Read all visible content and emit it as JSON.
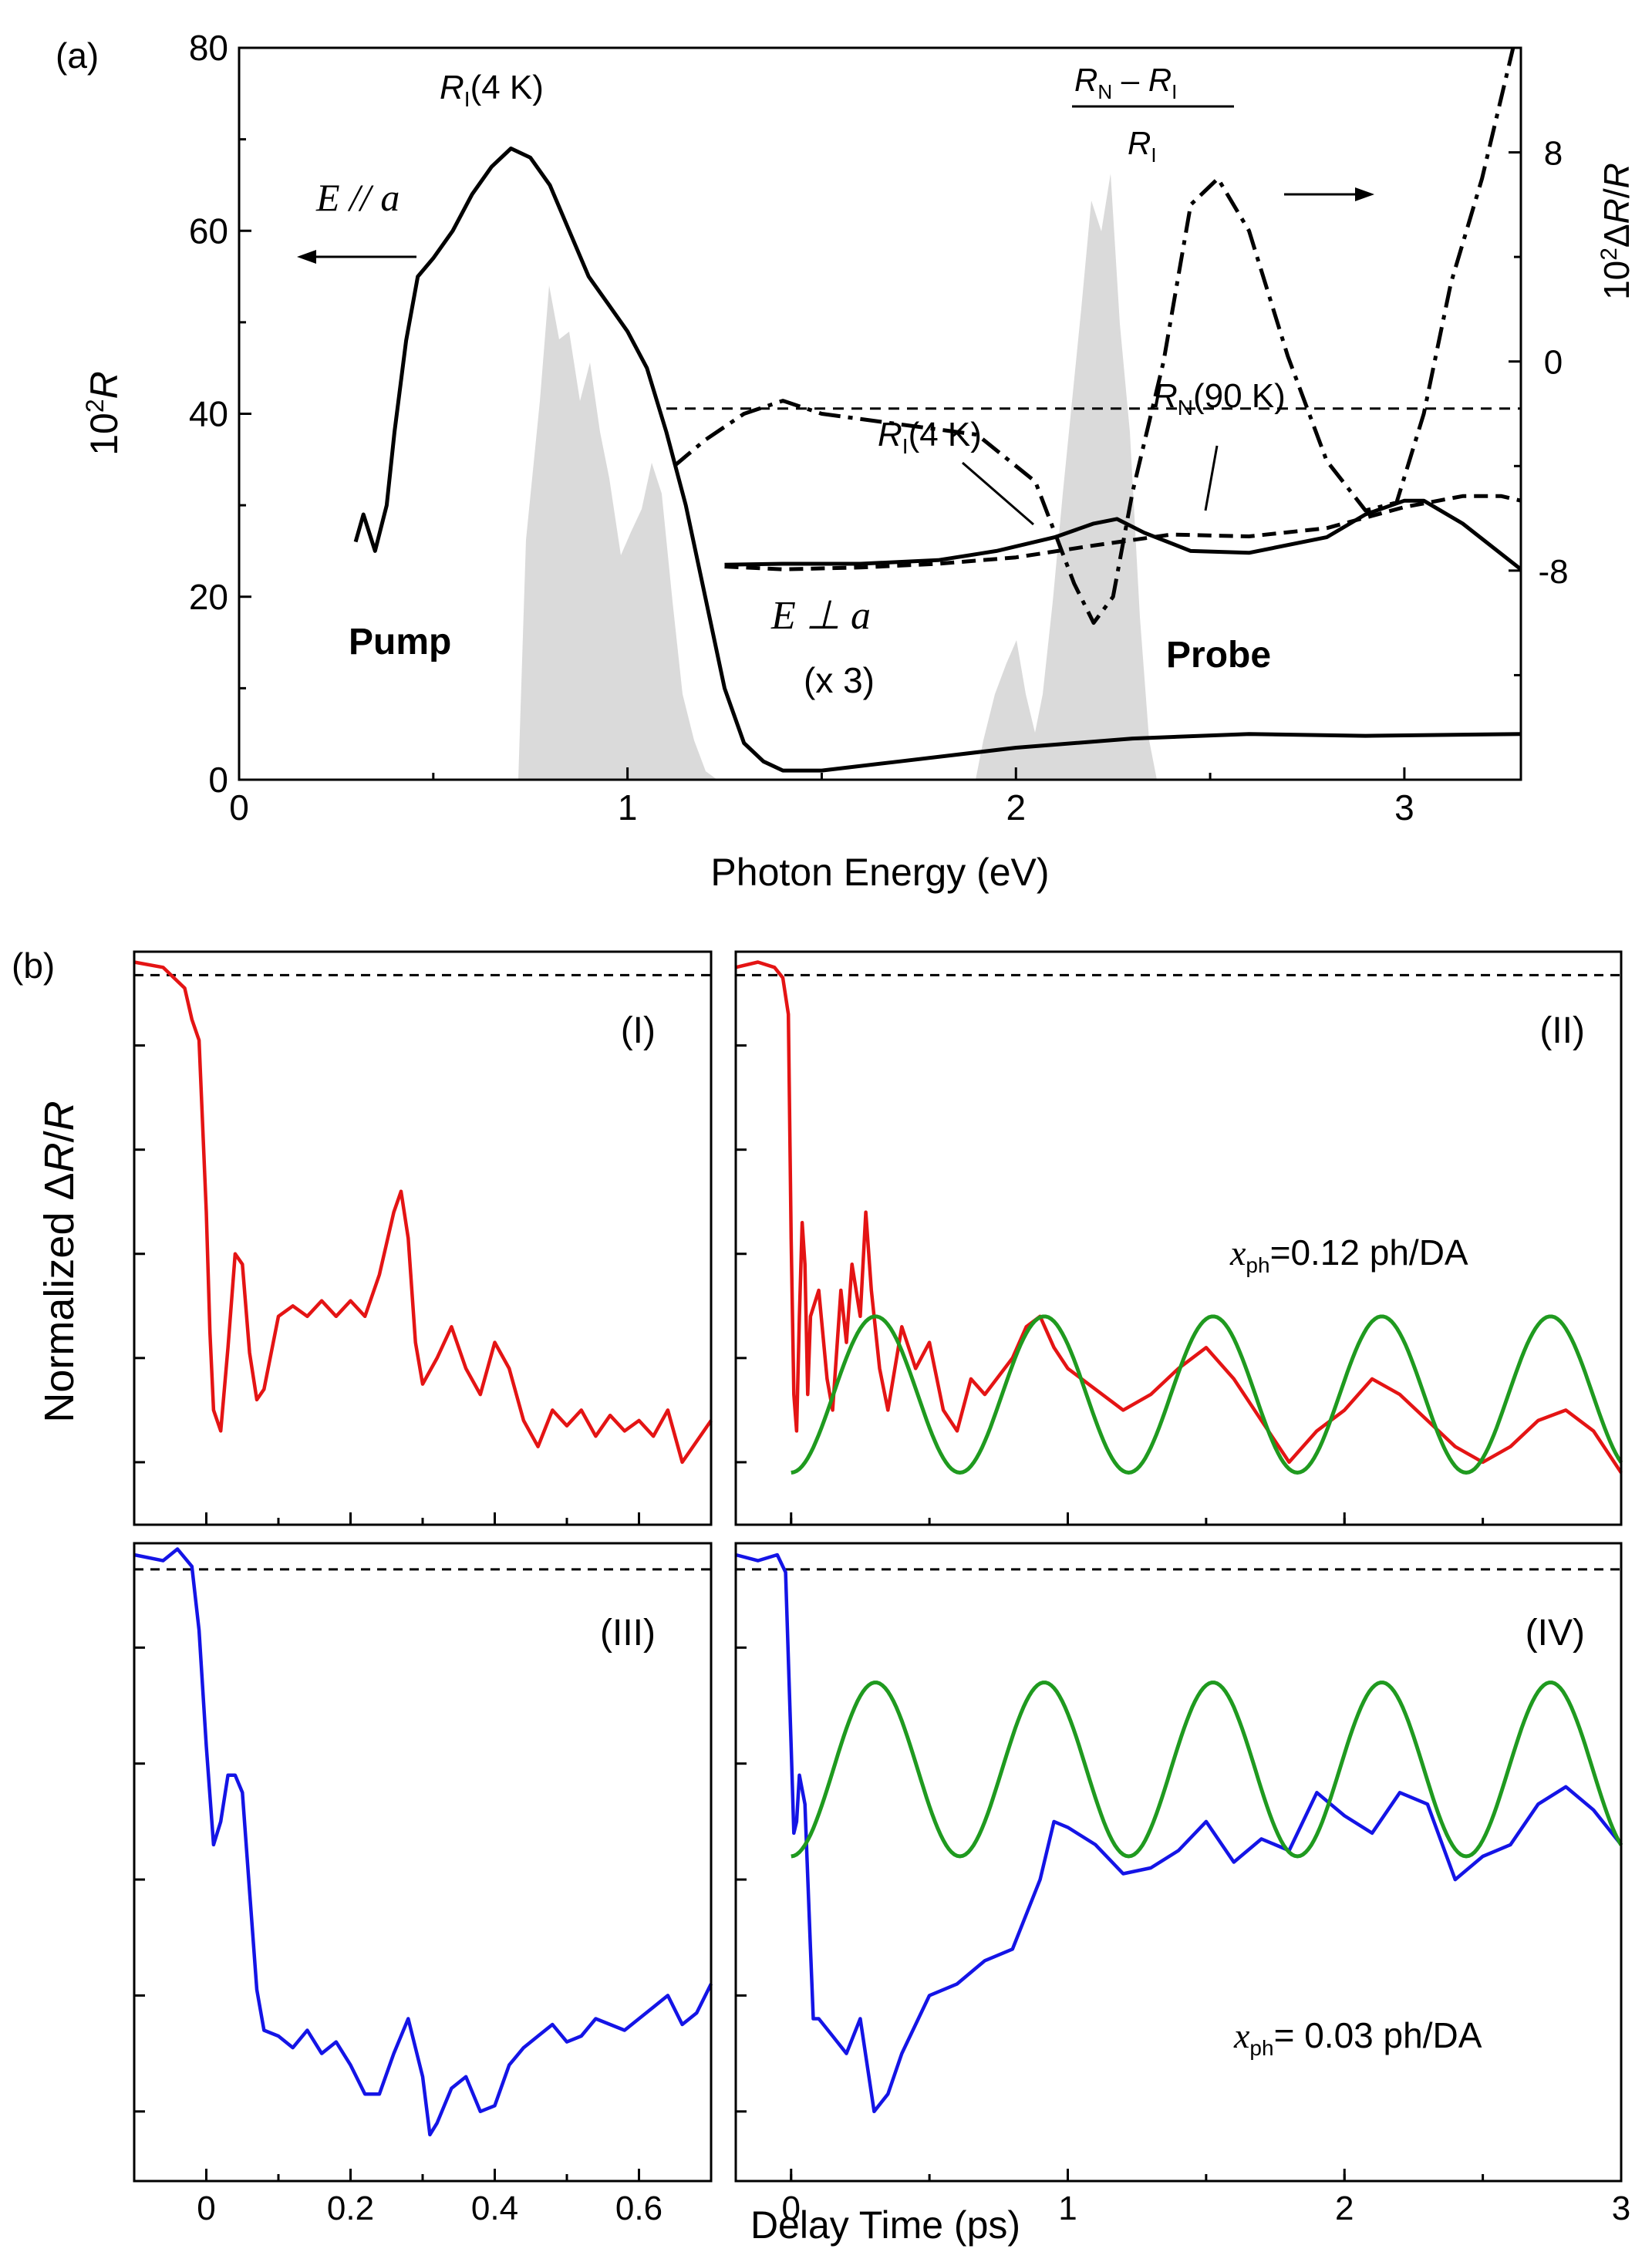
{
  "chart_data": [
    {
      "panel_label": "(a)",
      "type": "line",
      "xlabel": "Photon Energy (eV)",
      "ylabel_left": "10²R",
      "ylabel_right": "10²ΔR/R",
      "xlim": [
        0,
        3.3
      ],
      "ylim_left": [
        0,
        80
      ],
      "ylim_right": [
        -16,
        12
      ],
      "x_ticks": [
        "0",
        "1",
        "2",
        "3"
      ],
      "y_ticks_left": [
        "0",
        "20",
        "40",
        "60",
        "80"
      ],
      "y_ticks_right": [
        "-8",
        "0",
        "8"
      ],
      "annotations": {
        "e_par_a": "E // a",
        "e_perp_a": "E ⊥ a",
        "times3": "(x 3)",
        "pump": "Pump",
        "probe": "Probe",
        "ri4k_top": "RI(4 K)",
        "ri4k_mid": "RI(4 K)",
        "rn90k": "RN(90 K)",
        "ratio_num": "RN – RI",
        "ratio_den": "RI"
      },
      "series": [
        {
          "name": "RI(4 K) E // a",
          "axis": "left",
          "style": "solid",
          "x": [
            0.3,
            0.32,
            0.35,
            0.38,
            0.4,
            0.43,
            0.46,
            0.5,
            0.55,
            0.6,
            0.65,
            0.7,
            0.75,
            0.8,
            0.85,
            0.9,
            0.95,
            1.0,
            1.05,
            1.1,
            1.15,
            1.2,
            1.25,
            1.3,
            1.35,
            1.4,
            1.5,
            1.7,
            2.0,
            2.3,
            2.6,
            2.9,
            3.3
          ],
          "y": [
            26,
            29,
            25,
            30,
            38,
            48,
            55,
            57,
            60,
            64,
            67,
            69,
            68,
            65,
            60,
            55,
            52,
            49,
            45,
            38,
            30,
            20,
            10,
            4,
            2,
            1,
            1,
            2,
            3.5,
            4.5,
            5,
            4.8,
            5
          ]
        },
        {
          "name": "RI(4 K) E ⊥ a (x 3)",
          "axis": "left",
          "style": "solid",
          "x": [
            1.25,
            1.4,
            1.6,
            1.8,
            1.95,
            2.1,
            2.2,
            2.26,
            2.33,
            2.45,
            2.6,
            2.8,
            2.9,
            3.0,
            3.05,
            3.15,
            3.3
          ],
          "y": [
            23.5,
            23.6,
            23.6,
            24,
            25,
            26.5,
            28,
            28.5,
            27,
            25,
            24.8,
            26.5,
            29,
            30.5,
            30.5,
            28,
            23
          ]
        },
        {
          "name": "RN(90 K) E ⊥ a (x 3)",
          "axis": "left",
          "style": "dashed",
          "x": [
            1.25,
            1.4,
            1.6,
            1.8,
            2.0,
            2.2,
            2.4,
            2.6,
            2.8,
            3.0,
            3.15,
            3.25,
            3.3
          ],
          "y": [
            23.3,
            23,
            23.2,
            23.6,
            24.3,
            25.6,
            26.8,
            26.6,
            27.5,
            29.8,
            31,
            31,
            30.5
          ]
        },
        {
          "name": "(RN – RI)/RI",
          "axis": "right",
          "style": "dashdot",
          "x": [
            1.12,
            1.2,
            1.3,
            1.4,
            1.5,
            1.7,
            1.9,
            2.05,
            2.15,
            2.2,
            2.25,
            2.3,
            2.38,
            2.45,
            2.52,
            2.6,
            2.7,
            2.8,
            2.9,
            2.98,
            3.05,
            3.12,
            3.2,
            3.28
          ],
          "y": [
            -4,
            -3,
            -2,
            -1.5,
            -2,
            -2.4,
            -2.8,
            -4.6,
            -8.5,
            -10,
            -9,
            -5,
            0,
            6,
            7,
            5,
            0.2,
            -3.8,
            -5.7,
            -5.4,
            -2,
            3,
            7,
            12
          ]
        }
      ],
      "reference_line": {
        "axis": "right",
        "y": -1.8,
        "x_start": 1.1
      }
    },
    {
      "panel_label": "(b)",
      "type": "line",
      "ylabel": "Normalized ΔR/R",
      "xlabel": "Delay Time (ps)",
      "panels": [
        {
          "id": "I",
          "label": "(I)",
          "color": "#e41414",
          "xlim": [
            -0.1,
            0.7
          ],
          "ylim": [
            -1,
            0.1
          ],
          "x_ticks": [
            "0",
            "0.2",
            "0.4",
            "0.6"
          ],
          "x": [
            -0.1,
            -0.06,
            -0.03,
            -0.02,
            -0.01,
            0,
            0.005,
            0.01,
            0.02,
            0.03,
            0.04,
            0.05,
            0.06,
            0.07,
            0.08,
            0.1,
            0.12,
            0.14,
            0.16,
            0.18,
            0.2,
            0.22,
            0.24,
            0.26,
            0.27,
            0.28,
            0.29,
            0.3,
            0.32,
            0.34,
            0.36,
            0.38,
            0.4,
            0.42,
            0.44,
            0.46,
            0.48,
            0.5,
            0.52,
            0.54,
            0.56,
            0.58,
            0.6,
            0.62,
            0.64,
            0.66,
            0.68,
            0.7
          ],
          "y": [
            0.08,
            0.07,
            0.03,
            -0.03,
            -0.07,
            -0.4,
            -0.63,
            -0.78,
            -0.82,
            -0.66,
            -0.48,
            -0.5,
            -0.67,
            -0.76,
            -0.74,
            -0.6,
            -0.58,
            -0.6,
            -0.57,
            -0.6,
            -0.57,
            -0.6,
            -0.52,
            -0.4,
            -0.36,
            -0.45,
            -0.65,
            -0.73,
            -0.68,
            -0.62,
            -0.7,
            -0.75,
            -0.65,
            -0.7,
            -0.8,
            -0.85,
            -0.78,
            -0.81,
            -0.78,
            -0.83,
            -0.79,
            -0.82,
            -0.8,
            -0.83,
            -0.78,
            -0.88,
            -0.84,
            -0.8
          ]
        },
        {
          "id": "II",
          "label": "(II)",
          "color": "#e41414",
          "xlim": [
            -0.2,
            3.0
          ],
          "ylim": [
            -1,
            0.1
          ],
          "x_ticks": [
            "0",
            "1",
            "2",
            "3"
          ],
          "annotation_name": "x",
          "annotation_sub": "ph",
          "annotation_value": "=0.12 ph/DA",
          "x": [
            -0.2,
            -0.12,
            -0.06,
            -0.03,
            -0.01,
            0,
            0.01,
            0.02,
            0.03,
            0.04,
            0.05,
            0.06,
            0.07,
            0.1,
            0.13,
            0.15,
            0.18,
            0.2,
            0.22,
            0.25,
            0.27,
            0.29,
            0.32,
            0.35,
            0.4,
            0.45,
            0.5,
            0.55,
            0.6,
            0.65,
            0.7,
            0.8,
            0.85,
            0.9,
            0.95,
            1.0,
            1.1,
            1.2,
            1.3,
            1.4,
            1.5,
            1.6,
            1.7,
            1.8,
            1.9,
            2.0,
            2.1,
            2.2,
            2.3,
            2.4,
            2.5,
            2.6,
            2.7,
            2.8,
            2.9,
            3.0
          ],
          "y": [
            0.07,
            0.08,
            0.07,
            0.05,
            -0.02,
            -0.45,
            -0.75,
            -0.82,
            -0.6,
            -0.42,
            -0.5,
            -0.75,
            -0.6,
            -0.55,
            -0.72,
            -0.78,
            -0.55,
            -0.65,
            -0.5,
            -0.6,
            -0.4,
            -0.55,
            -0.7,
            -0.78,
            -0.62,
            -0.7,
            -0.65,
            -0.78,
            -0.82,
            -0.72,
            -0.75,
            -0.68,
            -0.62,
            -0.6,
            -0.66,
            -0.7,
            -0.74,
            -0.78,
            -0.75,
            -0.7,
            -0.66,
            -0.72,
            -0.8,
            -0.88,
            -0.82,
            -0.78,
            -0.72,
            -0.75,
            -0.8,
            -0.85,
            -0.88,
            -0.85,
            -0.8,
            -0.78,
            -0.82,
            -0.9
          ]
        },
        {
          "id": "III",
          "label": "(III)",
          "color": "#1414e6",
          "xlim": [
            -0.1,
            0.7
          ],
          "ylim": [
            -1,
            0.1
          ],
          "x_ticks": [
            "0",
            "0.2",
            "0.4",
            "0.6"
          ],
          "x": [
            -0.1,
            -0.06,
            -0.04,
            -0.02,
            -0.01,
            0,
            0.01,
            0.02,
            0.03,
            0.04,
            0.05,
            0.06,
            0.07,
            0.08,
            0.1,
            0.12,
            0.14,
            0.16,
            0.18,
            0.2,
            0.22,
            0.24,
            0.26,
            0.28,
            0.3,
            0.31,
            0.32,
            0.34,
            0.36,
            0.38,
            0.4,
            0.42,
            0.44,
            0.46,
            0.48,
            0.5,
            0.52,
            0.54,
            0.56,
            0.58,
            0.6,
            0.62,
            0.64,
            0.66,
            0.68,
            0.7
          ],
          "y": [
            0.08,
            0.07,
            0.09,
            0.06,
            -0.05,
            -0.25,
            -0.42,
            -0.38,
            -0.3,
            -0.3,
            -0.33,
            -0.5,
            -0.67,
            -0.74,
            -0.75,
            -0.77,
            -0.74,
            -0.78,
            -0.76,
            -0.8,
            -0.85,
            -0.85,
            -0.78,
            -0.72,
            -0.82,
            -0.92,
            -0.9,
            -0.84,
            -0.82,
            -0.88,
            -0.87,
            -0.8,
            -0.77,
            -0.75,
            -0.73,
            -0.76,
            -0.75,
            -0.72,
            -0.73,
            -0.74,
            -0.72,
            -0.7,
            -0.68,
            -0.73,
            -0.71,
            -0.66
          ]
        },
        {
          "id": "IV",
          "label": "(IV)",
          "color": "#1414e6",
          "xlim": [
            -0.2,
            3.0
          ],
          "ylim": [
            -1,
            0.1
          ],
          "x_ticks": [
            "0",
            "1",
            "2",
            "3"
          ],
          "annotation_name": "x",
          "annotation_sub": "ph",
          "annotation_value": "= 0.03 ph/DA",
          "x": [
            -0.2,
            -0.12,
            -0.05,
            -0.02,
            0,
            0.01,
            0.02,
            0.03,
            0.05,
            0.07,
            0.08,
            0.1,
            0.15,
            0.2,
            0.25,
            0.3,
            0.35,
            0.4,
            0.5,
            0.6,
            0.7,
            0.8,
            0.9,
            0.95,
            1.0,
            1.1,
            1.2,
            1.3,
            1.4,
            1.5,
            1.6,
            1.7,
            1.8,
            1.9,
            2.0,
            2.1,
            2.2,
            2.3,
            2.4,
            2.5,
            2.6,
            2.7,
            2.8,
            2.9,
            3.0
          ],
          "y": [
            0.08,
            0.07,
            0.08,
            0.05,
            -0.25,
            -0.4,
            -0.38,
            -0.3,
            -0.35,
            -0.6,
            -0.72,
            -0.72,
            -0.75,
            -0.78,
            -0.72,
            -0.88,
            -0.85,
            -0.78,
            -0.68,
            -0.66,
            -0.62,
            -0.6,
            -0.48,
            -0.38,
            -0.39,
            -0.42,
            -0.47,
            -0.46,
            -0.43,
            -0.38,
            -0.45,
            -0.41,
            -0.43,
            -0.33,
            -0.37,
            -0.4,
            -0.33,
            -0.35,
            -0.48,
            -0.44,
            -0.42,
            -0.35,
            -0.32,
            -0.36,
            -0.42
          ]
        }
      ]
    }
  ]
}
